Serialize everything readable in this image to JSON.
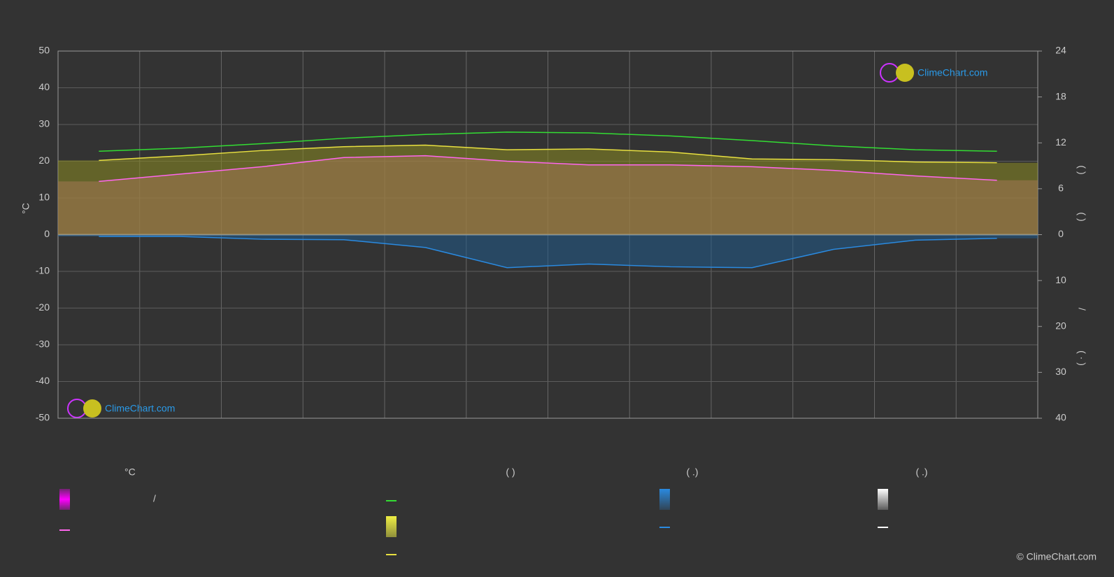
{
  "chart_data": {
    "type": "line",
    "y_label": "°C",
    "categories": [
      null,
      null,
      null,
      null,
      null,
      null,
      null,
      null,
      null,
      null,
      null,
      null
    ],
    "ylim": [
      -50,
      50
    ],
    "yticks": [
      -50,
      -40,
      -30,
      -20,
      -10,
      0,
      10,
      20,
      30,
      40,
      50
    ],
    "y2lim": [
      0,
      24
    ],
    "y2ticks": [
      0,
      6,
      12,
      18,
      24
    ],
    "y3lim": [
      0,
      40
    ],
    "y3ticks": [
      10,
      20,
      30,
      40
    ],
    "y2_label_parts": [
      "(  )",
      "(  )",
      "/",
      "(  ·  )"
    ],
    "grid": true,
    "series": [
      {
        "color": "#ff66ee",
        "values": [
          14.5,
          16.5,
          18.5,
          21,
          21.5,
          20,
          19,
          19,
          18.5,
          17.5,
          16,
          14.8
        ]
      },
      {
        "color": "#33dd33",
        "axis": "y2",
        "values": [
          10.9,
          11.3,
          11.9,
          12.6,
          13.1,
          13.4,
          13.3,
          12.9,
          12.3,
          11.6,
          11.1,
          10.9
        ]
      },
      {
        "color": "#e8e040",
        "axis": "y2",
        "values": [
          9.7,
          10.3,
          11,
          11.5,
          11.7,
          11.1,
          11.2,
          10.8,
          9.9,
          9.8,
          9.5,
          9.4
        ]
      },
      {
        "color": "#2a8ae0",
        "axis": "y3",
        "values": [
          0.4,
          0.4,
          1,
          1.1,
          2.8,
          7.2,
          6.4,
          7,
          7.2,
          3.2,
          1.2,
          0.8
        ]
      }
    ],
    "legend": {
      "headers": [
        "°C",
        "(          )",
        "(    .)",
        "(    .)"
      ],
      "slash": "/"
    },
    "logo": "ClimeChart.com",
    "copyright": "© ClimeChart.com"
  }
}
